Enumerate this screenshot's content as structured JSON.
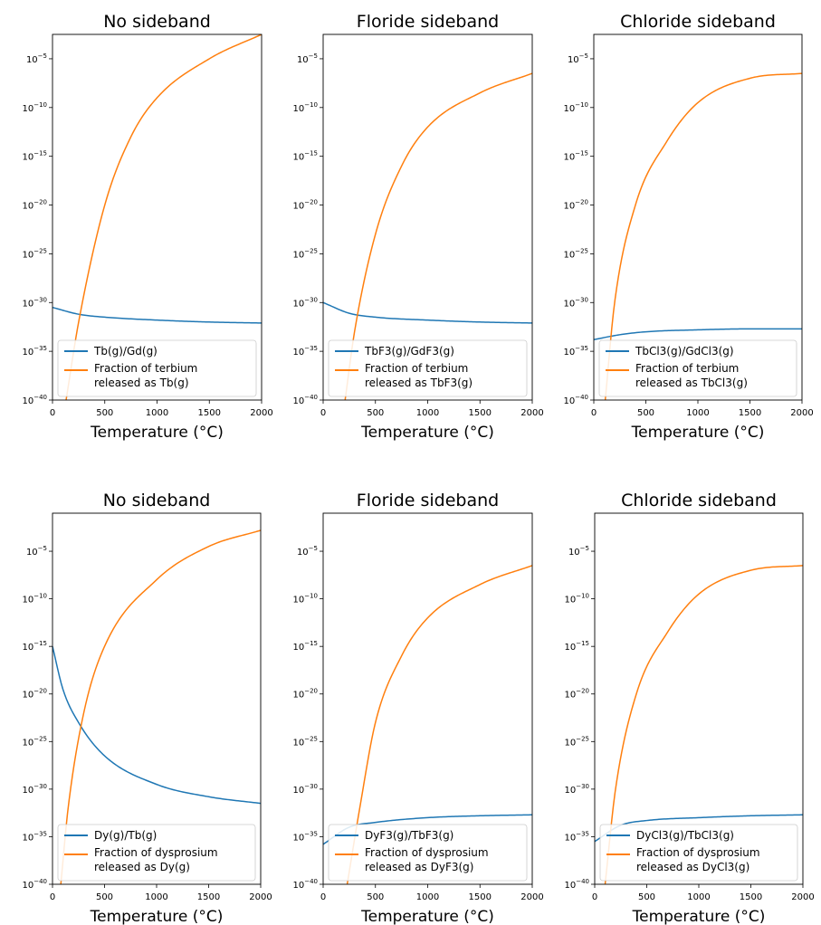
{
  "figure": {
    "description_free": true
  },
  "chart_data": [
    {
      "type": "line",
      "title": "No sideband",
      "xlabel": "Temperature (°C)",
      "ylabel": "",
      "xlim": [
        0,
        2000
      ],
      "yscale": "log",
      "ylim_exp": [
        -40,
        -2.5
      ],
      "xticks": [
        0,
        500,
        1000,
        1500,
        2000
      ],
      "ytick_exponents": [
        -5,
        -10,
        -15,
        -20,
        -25,
        -30,
        -35,
        -40
      ],
      "legend_position": "lower-left",
      "series": [
        {
          "name": "Tb(g)/Gd(g)",
          "color": "#1f77b4",
          "x": [
            0,
            250,
            500,
            1000,
            1500,
            2000
          ],
          "log10_y": [
            -30.5,
            -31.2,
            -31.5,
            -31.8,
            -32.0,
            -32.1
          ]
        },
        {
          "name": "Fraction of terbium released as Tb(g)",
          "color": "#ff7f0e",
          "x": [
            130,
            250,
            500,
            750,
            1000,
            1500,
            2000
          ],
          "log10_y": [
            -40,
            -32,
            -20,
            -13,
            -9,
            -5,
            -2.5
          ]
        }
      ]
    },
    {
      "type": "line",
      "title": "Floride sideband",
      "xlabel": "Temperature (°C)",
      "ylabel": "",
      "xlim": [
        0,
        2000
      ],
      "yscale": "log",
      "ylim_exp": [
        -40,
        -2.5
      ],
      "xticks": [
        0,
        500,
        1000,
        1500,
        2000
      ],
      "ytick_exponents": [
        -5,
        -10,
        -15,
        -20,
        -25,
        -30,
        -35,
        -40
      ],
      "legend_position": "lower-left",
      "series": [
        {
          "name": "TbF3(g)/GdF3(g)",
          "color": "#1f77b4",
          "x": [
            0,
            250,
            500,
            1000,
            1500,
            2000
          ],
          "log10_y": [
            -30.0,
            -31.1,
            -31.5,
            -31.8,
            -32.0,
            -32.1
          ]
        },
        {
          "name": "Fraction of terbium released as TbF3(g)",
          "color": "#ff7f0e",
          "x": [
            210,
            300,
            500,
            750,
            1000,
            1500,
            2000
          ],
          "log10_y": [
            -40,
            -33,
            -23,
            -16,
            -12,
            -8.5,
            -6.5
          ]
        }
      ]
    },
    {
      "type": "line",
      "title": "Chloride sideband",
      "xlabel": "Temperature (°C)",
      "ylabel": "",
      "xlim": [
        0,
        2000
      ],
      "yscale": "log",
      "ylim_exp": [
        -40,
        -2.5
      ],
      "xticks": [
        0,
        500,
        1000,
        1500,
        2000
      ],
      "ytick_exponents": [
        -5,
        -10,
        -15,
        -20,
        -25,
        -30,
        -35,
        -40
      ],
      "legend_position": "lower-left",
      "series": [
        {
          "name": "TbCl3(g)/GdCl3(g)",
          "color": "#1f77b4",
          "x": [
            0,
            250,
            500,
            1000,
            1500,
            2000
          ],
          "log10_y": [
            -33.8,
            -33.3,
            -33.0,
            -32.8,
            -32.7,
            -32.7
          ]
        },
        {
          "name": "Fraction of terbium released as TbCl3(g)",
          "color": "#ff7f0e",
          "x": [
            110,
            200,
            400,
            700,
            1000,
            1500,
            2000
          ],
          "log10_y": [
            -40,
            -30,
            -20,
            -13.5,
            -9.5,
            -7,
            -6.5
          ]
        }
      ]
    },
    {
      "type": "line",
      "title": "No sideband",
      "xlabel": "Temperature (°C)",
      "ylabel": "",
      "xlim": [
        0,
        2000
      ],
      "yscale": "log",
      "ylim_exp": [
        -40,
        -1
      ],
      "xticks": [
        0,
        500,
        1000,
        1500,
        2000
      ],
      "ytick_exponents": [
        -5,
        -10,
        -15,
        -20,
        -25,
        -30,
        -35,
        -40
      ],
      "legend_position": "lower-left",
      "series": [
        {
          "name": "Dy(g)/Tb(g)",
          "color": "#1f77b4",
          "x": [
            0,
            100,
            250,
            500,
            1000,
            1500,
            2000
          ],
          "log10_y": [
            -15,
            -19.5,
            -23,
            -26.5,
            -29.5,
            -30.8,
            -31.5
          ]
        },
        {
          "name": "Fraction of dysprosium released as Dy(g)",
          "color": "#ff7f0e",
          "x": [
            80,
            150,
            300,
            500,
            1000,
            1500,
            2000
          ],
          "log10_y": [
            -40,
            -32,
            -22,
            -15,
            -8,
            -4.5,
            -2.8
          ]
        }
      ]
    },
    {
      "type": "line",
      "title": "Floride sideband",
      "xlabel": "Temperature (°C)",
      "ylabel": "",
      "xlim": [
        0,
        2000
      ],
      "yscale": "log",
      "ylim_exp": [
        -40,
        -1
      ],
      "xticks": [
        0,
        500,
        1000,
        1500,
        2000
      ],
      "ytick_exponents": [
        -5,
        -10,
        -15,
        -20,
        -25,
        -30,
        -35,
        -40
      ],
      "legend_position": "lower-left",
      "series": [
        {
          "name": "DyF3(g)/TbF3(g)",
          "color": "#1f77b4",
          "x": [
            0,
            250,
            500,
            1000,
            1500,
            2000
          ],
          "log10_y": [
            -35.8,
            -34.0,
            -33.5,
            -33.0,
            -32.8,
            -32.7
          ]
        },
        {
          "name": "Fraction of dysprosium released as DyF3(g)",
          "color": "#ff7f0e",
          "x": [
            230,
            350,
            500,
            750,
            1000,
            1500,
            2000
          ],
          "log10_y": [
            -40,
            -32,
            -23,
            -16,
            -12,
            -8.5,
            -6.5
          ]
        }
      ]
    },
    {
      "type": "line",
      "title": "Chloride sideband",
      "xlabel": "Temperature (°C)",
      "ylabel": "",
      "xlim": [
        0,
        2000
      ],
      "yscale": "log",
      "ylim_exp": [
        -40,
        -1
      ],
      "xticks": [
        0,
        500,
        1000,
        1500,
        2000
      ],
      "ytick_exponents": [
        -5,
        -10,
        -15,
        -20,
        -25,
        -30,
        -35,
        -40
      ],
      "legend_position": "lower-left",
      "series": [
        {
          "name": "DyCl3(g)/TbCl3(g)",
          "color": "#1f77b4",
          "x": [
            0,
            250,
            500,
            1000,
            1500,
            2000
          ],
          "log10_y": [
            -35.5,
            -33.8,
            -33.3,
            -33.0,
            -32.8,
            -32.7
          ]
        },
        {
          "name": "Fraction of dysprosium released as DyCl3(g)",
          "color": "#ff7f0e",
          "x": [
            100,
            200,
            400,
            700,
            1000,
            1500,
            2000
          ],
          "log10_y": [
            -40,
            -30,
            -20,
            -13.5,
            -9.5,
            -7,
            -6.5
          ]
        }
      ]
    }
  ],
  "legend_lines": [
    {
      "line1": "Tb(g)/Gd(g)",
      "line2a": "Fraction of terbium",
      "line2b": "released as Tb(g)"
    },
    {
      "line1": "TbF3(g)/GdF3(g)",
      "line2a": "Fraction of terbium",
      "line2b": "released as TbF3(g)"
    },
    {
      "line1": "TbCl3(g)/GdCl3(g)",
      "line2a": "Fraction of terbium",
      "line2b": "released as TbCl3(g)"
    },
    {
      "line1": "Dy(g)/Tb(g)",
      "line2a": "Fraction of dysprosium",
      "line2b": "released as Dy(g)"
    },
    {
      "line1": "DyF3(g)/TbF3(g)",
      "line2a": "Fraction of dysprosium",
      "line2b": "released as DyF3(g)"
    },
    {
      "line1": "DyCl3(g)/TbCl3(g)",
      "line2a": "Fraction of dysprosium",
      "line2b": "released as DyCl3(g)"
    }
  ]
}
